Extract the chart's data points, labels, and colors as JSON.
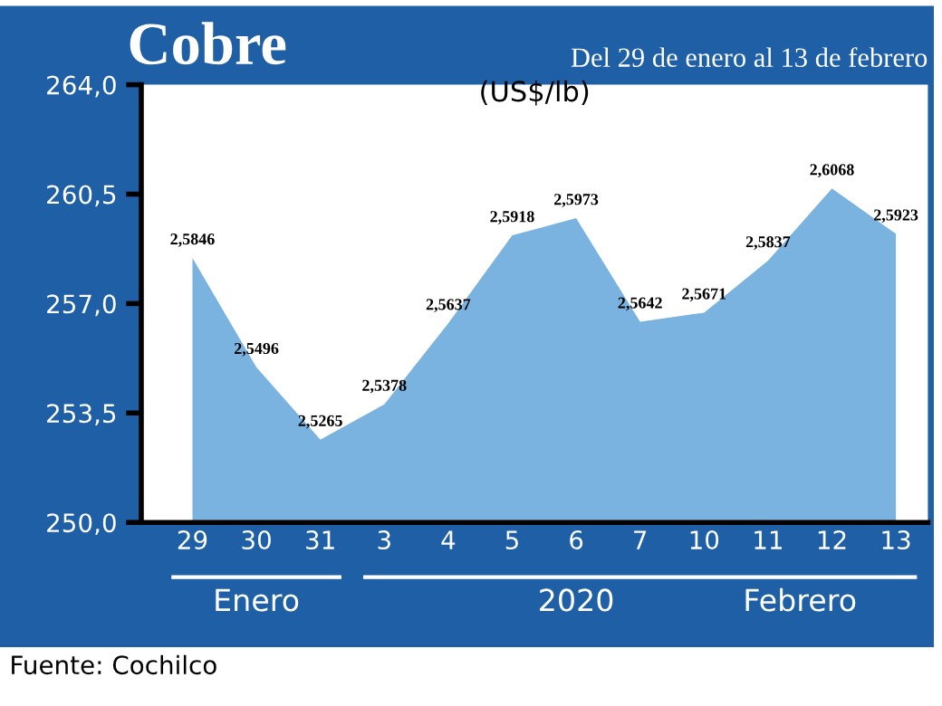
{
  "chart_data": {
    "type": "area",
    "title": "Cobre",
    "subtitle": "Del 29 de enero al 13 de febrero",
    "ylabel": "(US$/lb)",
    "categories": [
      "29",
      "30",
      "31",
      "3",
      "4",
      "5",
      "6",
      "7",
      "10",
      "11",
      "12",
      "13"
    ],
    "series": [
      {
        "color": "#7ab3e0",
        "values": [
          258.46,
          254.96,
          252.65,
          253.78,
          256.37,
          259.18,
          259.73,
          256.42,
          256.71,
          258.37,
          260.68,
          259.23
        ]
      }
    ],
    "value_labels": [
      "2,5846",
      "2,5496",
      "2,5265",
      "2,5378",
      "2,5637",
      "2,5918",
      "2,5973",
      "2,5642",
      "2,5671",
      "2,5837",
      "2,6068",
      "2,5923"
    ],
    "ylim": [
      250,
      264
    ],
    "yticks": [
      {
        "value": 250,
        "label": "250,0"
      },
      {
        "value": 253.5,
        "label": "253,5"
      },
      {
        "value": 257,
        "label": "257,0"
      },
      {
        "value": 260.5,
        "label": "260,5"
      },
      {
        "value": 264,
        "label": "264,0"
      }
    ],
    "annotations": [
      "Enero",
      "2020",
      "Febrero",
      "Fuente: Cochilco"
    ],
    "grid": false,
    "legend": false
  }
}
